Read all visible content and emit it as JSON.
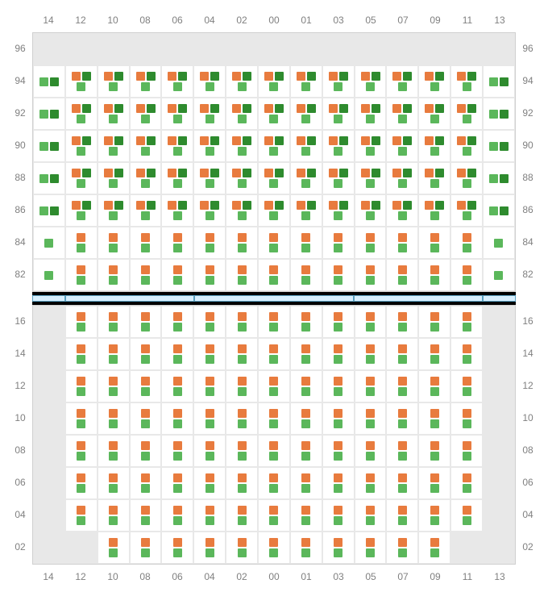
{
  "colors": {
    "orange": "#e87b3e",
    "green": "#5bb75b",
    "darkgreen": "#2e8b2e",
    "empty_bg": "#e8e8e8",
    "cell_bg": "#ffffff",
    "grid_border": "#e8e8e8",
    "label_color": "#808080",
    "bar_bg": "#d8f0ff",
    "bar_border": "#5aa0c0",
    "black": "#000000"
  },
  "columns": [
    "14",
    "12",
    "10",
    "08",
    "06",
    "04",
    "02",
    "00",
    "01",
    "03",
    "05",
    "07",
    "09",
    "11",
    "13"
  ],
  "top_rows": [
    "96",
    "94",
    "92",
    "90",
    "88",
    "86",
    "84",
    "82"
  ],
  "bottom_rows": [
    "16",
    "14",
    "12",
    "10",
    "08",
    "06",
    "04",
    "02"
  ],
  "middle_segments": [
    1,
    4,
    5,
    4,
    1
  ],
  "top_grid": [
    [
      "E",
      "E",
      "E",
      "E",
      "E",
      "E",
      "E",
      "E",
      "E",
      "E",
      "E",
      "E",
      "E",
      "E",
      "E"
    ],
    [
      "GDG",
      "ODG",
      "ODG",
      "ODG",
      "ODG",
      "ODG",
      "ODG",
      "ODG",
      "ODG",
      "ODG",
      "ODG",
      "ODG",
      "ODG",
      "ODG",
      "GDG"
    ],
    [
      "GDG",
      "ODG",
      "ODG",
      "ODG",
      "ODG",
      "ODG",
      "ODG",
      "ODG",
      "ODG",
      "ODG",
      "ODG",
      "ODG",
      "ODG",
      "ODG",
      "GDG"
    ],
    [
      "GDG",
      "ODG",
      "ODG",
      "ODG",
      "ODG",
      "ODG",
      "ODG",
      "ODG",
      "ODG",
      "ODG",
      "ODG",
      "ODG",
      "ODG",
      "ODG",
      "GDG"
    ],
    [
      "GDG",
      "ODG",
      "ODG",
      "ODG",
      "ODG",
      "ODG",
      "ODG",
      "ODG",
      "ODG",
      "ODG",
      "ODG",
      "ODG",
      "ODG",
      "ODG",
      "GDG"
    ],
    [
      "GDG",
      "ODG",
      "ODG",
      "ODG",
      "ODG",
      "ODG",
      "ODG",
      "ODG",
      "ODG",
      "ODG",
      "ODG",
      "ODG",
      "ODG",
      "ODG",
      "GDG"
    ],
    [
      "G1",
      "OG",
      "OG",
      "OG",
      "OG",
      "OG",
      "OG",
      "OG",
      "OG",
      "OG",
      "OG",
      "OG",
      "OG",
      "OG",
      "G1"
    ],
    [
      "G1",
      "OG",
      "OG",
      "OG",
      "OG",
      "OG",
      "OG",
      "OG",
      "OG",
      "OG",
      "OG",
      "OG",
      "OG",
      "OG",
      "G1"
    ]
  ],
  "bottom_grid": [
    [
      "E",
      "OG",
      "OG",
      "OG",
      "OG",
      "OG",
      "OG",
      "OG",
      "OG",
      "OG",
      "OG",
      "OG",
      "OG",
      "OG",
      "E"
    ],
    [
      "E",
      "OG",
      "OG",
      "OG",
      "OG",
      "OG",
      "OG",
      "OG",
      "OG",
      "OG",
      "OG",
      "OG",
      "OG",
      "OG",
      "E"
    ],
    [
      "E",
      "OG",
      "OG",
      "OG",
      "OG",
      "OG",
      "OG",
      "OG",
      "OG",
      "OG",
      "OG",
      "OG",
      "OG",
      "OG",
      "E"
    ],
    [
      "E",
      "OG",
      "OG",
      "OG",
      "OG",
      "OG",
      "OG",
      "OG",
      "OG",
      "OG",
      "OG",
      "OG",
      "OG",
      "OG",
      "E"
    ],
    [
      "E",
      "OG",
      "OG",
      "OG",
      "OG",
      "OG",
      "OG",
      "OG",
      "OG",
      "OG",
      "OG",
      "OG",
      "OG",
      "OG",
      "E"
    ],
    [
      "E",
      "OG",
      "OG",
      "OG",
      "OG",
      "OG",
      "OG",
      "OG",
      "OG",
      "OG",
      "OG",
      "OG",
      "OG",
      "OG",
      "E"
    ],
    [
      "E",
      "OG",
      "OG",
      "OG",
      "OG",
      "OG",
      "OG",
      "OG",
      "OG",
      "OG",
      "OG",
      "OG",
      "OG",
      "OG",
      "E"
    ],
    [
      "E",
      "E",
      "OG",
      "OG",
      "OG",
      "OG",
      "OG",
      "OG",
      "OG",
      "OG",
      "OG",
      "OG",
      "OG",
      "E",
      "E"
    ]
  ],
  "cell_types": {
    "E": {
      "empty": true
    },
    "G1": {
      "top": [
        "green"
      ],
      "bottom": null
    },
    "OG": {
      "top": [
        "orange"
      ],
      "bottom": "green"
    },
    "GDG": {
      "top": [
        "green",
        "darkgreen"
      ],
      "bottom": null
    },
    "ODG": {
      "top": [
        "orange",
        "darkgreen"
      ],
      "bottom": "green"
    }
  }
}
